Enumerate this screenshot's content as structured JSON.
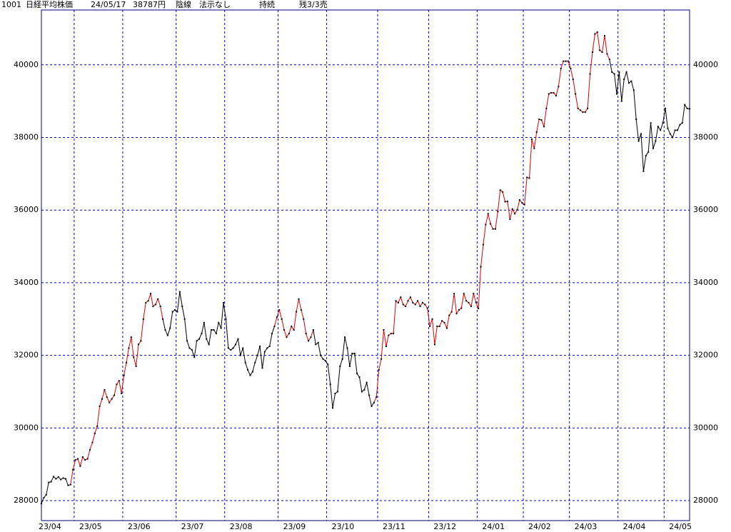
{
  "chart_data": {
    "type": "line",
    "header": [
      "1001",
      "日経平均株価",
      "24/05/17",
      "38787円",
      "陰線",
      "法示なし",
      "持続",
      "残3/3売"
    ],
    "categories": [
      "23/04",
      null,
      null,
      null,
      null,
      null,
      null,
      null,
      null,
      null,
      null,
      null,
      null,
      null,
      "23/05",
      null,
      null,
      null,
      null,
      null,
      null,
      null,
      null,
      null,
      null,
      null,
      null,
      null,
      null,
      null,
      null,
      null,
      null,
      null,
      "23/06",
      null,
      null,
      null,
      null,
      null,
      null,
      null,
      null,
      null,
      null,
      null,
      null,
      null,
      null,
      null,
      null,
      null,
      null,
      null,
      null,
      null,
      "23/07",
      null,
      null,
      null,
      null,
      null,
      null,
      null,
      null,
      null,
      null,
      null,
      null,
      null,
      null,
      null,
      null,
      null,
      null,
      null,
      "23/08",
      null,
      null,
      null,
      null,
      null,
      null,
      null,
      null,
      null,
      null,
      null,
      null,
      null,
      null,
      null,
      null,
      null,
      null,
      null,
      null,
      null,
      "23/09",
      null,
      null,
      null,
      null,
      null,
      null,
      null,
      null,
      null,
      null,
      null,
      null,
      null,
      null,
      null,
      null,
      null,
      null,
      null,
      "23/10",
      null,
      null,
      null,
      null,
      null,
      null,
      null,
      null,
      null,
      null,
      null,
      null,
      null,
      null,
      null,
      null,
      null,
      null,
      null,
      null,
      "23/11",
      null,
      null,
      null,
      null,
      null,
      null,
      null,
      null,
      null,
      null,
      null,
      null,
      null,
      null,
      null,
      null,
      null,
      null,
      null,
      null,
      "23/12",
      null,
      null,
      null,
      null,
      null,
      null,
      null,
      null,
      null,
      null,
      null,
      null,
      null,
      null,
      null,
      null,
      null,
      null,
      null,
      "24/01",
      null,
      null,
      null,
      null,
      null,
      null,
      null,
      null,
      null,
      null,
      null,
      null,
      null,
      null,
      null,
      null,
      null,
      null,
      "24/02",
      null,
      null,
      null,
      null,
      null,
      null,
      null,
      null,
      null,
      null,
      null,
      null,
      null,
      null,
      null,
      null,
      null,
      null,
      "24/03",
      null,
      null,
      null,
      null,
      null,
      null,
      null,
      null,
      null,
      null,
      null,
      null,
      null,
      null,
      null,
      null,
      null,
      null,
      null,
      "24/04",
      null,
      null,
      null,
      null,
      null,
      null,
      null,
      null,
      null,
      null,
      null,
      null,
      null,
      null,
      null,
      null,
      null,
      null,
      "24/05",
      null,
      null,
      null,
      null,
      null,
      null,
      null,
      null,
      null,
      null
    ],
    "values": [
      27920,
      28080,
      28160,
      28500,
      28520,
      28660,
      28600,
      28650,
      28580,
      28620,
      28600,
      28420,
      28440,
      28850,
      29120,
      29150,
      28950,
      29200,
      29120,
      29150,
      29400,
      29600,
      29850,
      30050,
      30600,
      30800,
      31050,
      30850,
      30700,
      30800,
      30900,
      31200,
      31300,
      30950,
      31450,
      31800,
      32200,
      32500,
      31950,
      31700,
      32300,
      32400,
      33000,
      33450,
      33500,
      33700,
      33350,
      33400,
      33550,
      33350,
      33000,
      32700,
      32550,
      32750,
      33200,
      33250,
      33200,
      33750,
      33350,
      33000,
      32400,
      32200,
      32150,
      31950,
      32400,
      32450,
      32600,
      32900,
      32450,
      32300,
      32700,
      32700,
      32600,
      32900,
      32750,
      33450,
      33000,
      32200,
      32150,
      32200,
      32300,
      32450,
      32000,
      32200,
      31800,
      31600,
      31450,
      31550,
      31800,
      32000,
      32250,
      31650,
      32100,
      32200,
      32250,
      32600,
      32800,
      33050,
      33250,
      33000,
      32700,
      32500,
      32600,
      32800,
      32700,
      33200,
      33550,
      33250,
      33000,
      32600,
      32400,
      32500,
      32700,
      32300,
      32350,
      32000,
      31900,
      31850,
      31750,
      31200,
      30550,
      30950,
      31000,
      31700,
      31900,
      32500,
      32200,
      31700,
      32050,
      32050,
      31500,
      31400,
      31000,
      31050,
      31250,
      30900,
      30600,
      30700,
      30850,
      31600,
      31900,
      32700,
      32250,
      32550,
      32600,
      32600,
      33500,
      33450,
      33600,
      33400,
      33350,
      33500,
      33600,
      33450,
      33400,
      33500,
      33350,
      33450,
      33400,
      33300,
      32800,
      33000,
      32300,
      32800,
      32800,
      32950,
      32900,
      32750,
      33100,
      33200,
      33700,
      33150,
      33250,
      33300,
      33700,
      33500,
      33450,
      33350,
      33700,
      33460,
      33290,
      34440,
      35050,
      35600,
      35900,
      35620,
      35480,
      35480,
      35960,
      36550,
      36500,
      36230,
      36240,
      35750,
      36030,
      35900,
      36010,
      36280,
      36200,
      36150,
      36900,
      36880,
      37950,
      37700,
      38150,
      38500,
      38480,
      38300,
      38800,
      39200,
      39230,
      39230,
      39150,
      39400,
      39900,
      40100,
      40100,
      40100,
      39900,
      39600,
      39200,
      38800,
      38750,
      38700,
      38700,
      38800,
      39750,
      40350,
      40850,
      40900,
      40400,
      40350,
      40800,
      40300,
      40150,
      39800,
      39750,
      39200,
      39800,
      39000,
      39600,
      39800,
      39500,
      39550,
      39300,
      38500,
      37900,
      38100,
      37070,
      37500,
      37600,
      38400,
      37700,
      37900,
      38300,
      38200,
      38400,
      38800,
      38250,
      38100,
      38000,
      38200,
      38200,
      38350,
      38400,
      38900,
      38800,
      38787
    ],
    "color": "#000000",
    "up_color": "#e00000",
    "up_ranges": [
      [
        12,
        50
      ],
      [
        96,
        112
      ],
      [
        137,
        234
      ]
    ],
    "ylim": [
      27450,
      41510
    ],
    "yticks": [
      28000,
      30000,
      32000,
      34000,
      36000,
      38000,
      40000
    ],
    "grid": true,
    "grid_color": "#0000c0",
    "frame_color": "#000080"
  }
}
